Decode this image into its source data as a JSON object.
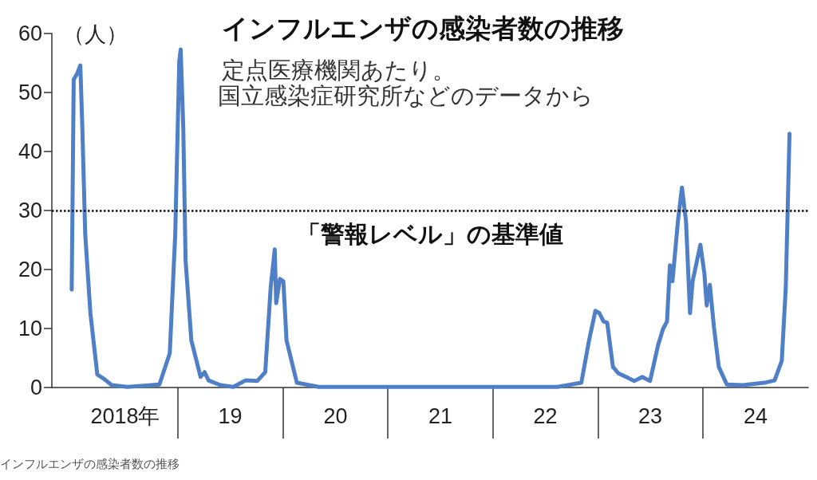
{
  "chart_data": {
    "type": "line",
    "title": "インフルエンザの感染者数の推移",
    "subtitle": "定点医療機関あたり。",
    "ylabel": "（人）",
    "annotations": [
      "国立感染症研究所などのデータから",
      "インフルエンザの感染者数の推移"
    ],
    "x": [
      "2017-12-28",
      "2018-01-04",
      "2018-01-16",
      "2018-01-27",
      "2018-02-03",
      "2018-02-13",
      "2018-03-03",
      "2018-03-27",
      "2018-04-18",
      "2018-05-16",
      "2018-07-10",
      "2018-10-29",
      "2018-12-04",
      "2018-12-23",
      "2019-01-06",
      "2019-01-11",
      "2019-01-20",
      "2019-01-28",
      "2019-02-17",
      "2019-03-21",
      "2019-04-04",
      "2019-04-18",
      "2019-05-29",
      "2019-07-13",
      "2019-08-24",
      "2019-10-04",
      "2019-11-01",
      "2019-11-20",
      "2019-12-04",
      "2019-12-09",
      "2019-12-22",
      "2020-01-03",
      "2020-01-14",
      "2020-02-19",
      "2020-05-05",
      "2021-02-05",
      "2021-11-09",
      "2022-08-13",
      "2022-11-04",
      "2022-12-01",
      "2022-12-23",
      "2023-01-06",
      "2023-01-20",
      "2023-02-02",
      "2023-02-22",
      "2023-03-13",
      "2023-04-09",
      "2023-05-07",
      "2023-06-04",
      "2023-07-01",
      "2023-07-29",
      "2023-08-15",
      "2023-08-29",
      "2023-09-08",
      "2023-09-17",
      "2023-10-06",
      "2023-10-20",
      "2023-11-03",
      "2023-11-17",
      "2023-11-26",
      "2023-12-23",
      "2024-01-06",
      "2024-01-14",
      "2024-01-25",
      "2024-02-08",
      "2024-02-25",
      "2024-03-24",
      "2024-05-19",
      "2024-08-01",
      "2024-09-06",
      "2024-10-01",
      "2024-10-15",
      "2024-10-28"
    ],
    "series": [
      {
        "color": "#4f7fc6",
        "values": [
          16.6,
          52.2,
          53.2,
          54.6,
          44,
          26,
          12.6,
          2.2,
          1.5,
          0.4,
          0.1,
          0.5,
          5.8,
          26,
          55.3,
          57.3,
          44,
          21.5,
          8,
          1.8,
          2.6,
          1.2,
          0.4,
          0.1,
          1.2,
          1.1,
          2.6,
          17,
          23.4,
          14.3,
          18.4,
          18,
          8,
          0.8,
          0.1,
          0.1,
          0.1,
          0.1,
          0.8,
          8,
          13,
          12.6,
          11.2,
          11,
          3.5,
          2.4,
          1.8,
          1.1,
          1.8,
          1.1,
          7.2,
          9.9,
          11.2,
          20.7,
          18,
          28.2,
          33.9,
          28.2,
          12.6,
          18,
          24.2,
          19.3,
          13.9,
          17.4,
          10.3,
          3.5,
          0.5,
          0.4,
          0.8,
          1.2,
          4.5,
          17,
          43
        ]
      }
    ],
    "xlim": [
      "2017-10-20",
      "2025-01-01"
    ],
    "xticks": [
      {
        "value": "2018-07-02",
        "label": "2018年"
      },
      {
        "value": "2019-07-02",
        "label": "19"
      },
      {
        "value": "2020-07-02",
        "label": "20"
      },
      {
        "value": "2021-07-02",
        "label": "21"
      },
      {
        "value": "2022-07-02",
        "label": "22"
      },
      {
        "value": "2023-07-02",
        "label": "23"
      },
      {
        "value": "2024-07-02",
        "label": "24"
      }
    ],
    "ylim": [
      0,
      60
    ],
    "yticks": [
      0,
      10,
      20,
      30,
      40,
      50,
      60
    ],
    "ref_lines": [
      {
        "axis": "y",
        "value": 30,
        "label": "「警報レベル」の基準値",
        "color": "#111111",
        "line_style": "dotted"
      }
    ],
    "grid": false,
    "marker": "none",
    "line_style": "solid"
  }
}
